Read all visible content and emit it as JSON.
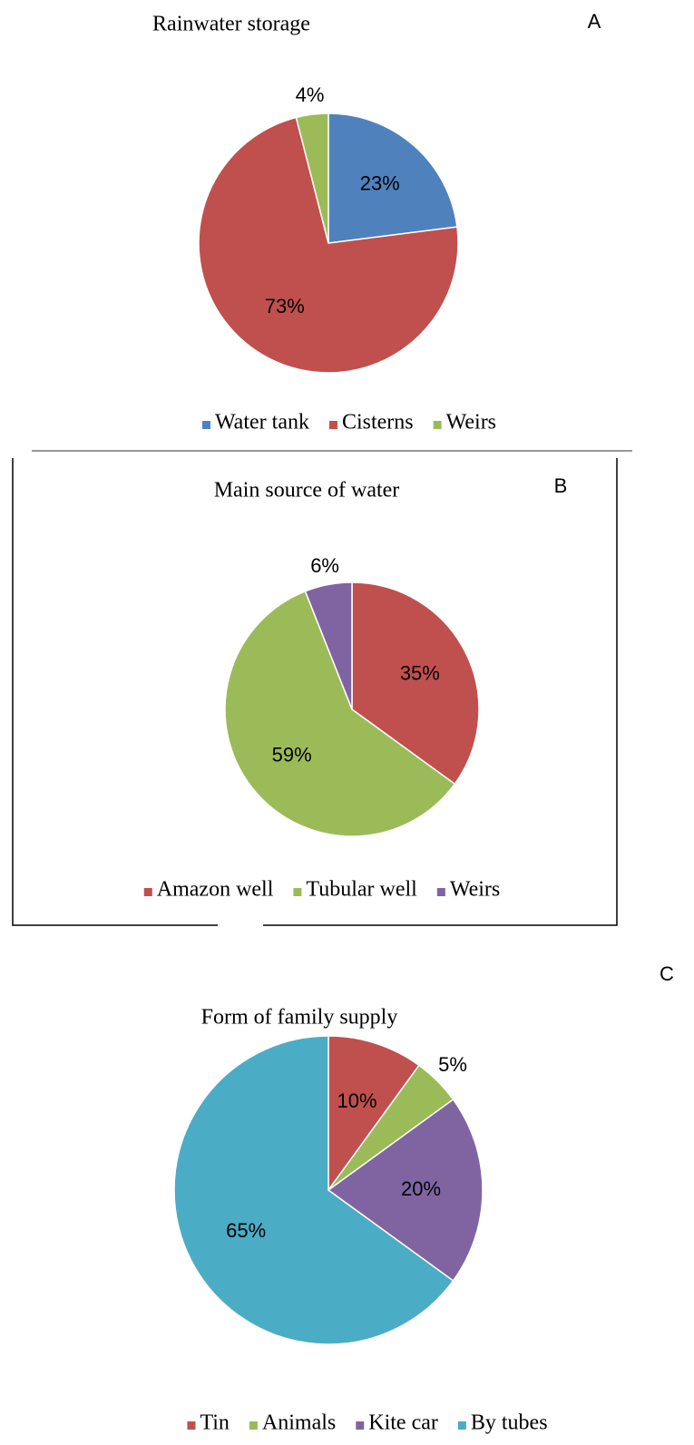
{
  "chart_data": [
    {
      "type": "pie",
      "title": "Rainwater storage",
      "panel_label": "A",
      "categories": [
        "Water tank",
        "Cisterns",
        "Weirs"
      ],
      "values": [
        23,
        73,
        4
      ],
      "value_labels": [
        "23%",
        "73%",
        "4%"
      ],
      "colors": [
        "#4f81bd",
        "#c0504d",
        "#9bbb59"
      ]
    },
    {
      "type": "pie",
      "title": "Main source of water",
      "panel_label": "B",
      "categories": [
        "Amazon well",
        "Tubular well",
        "Weirs"
      ],
      "values": [
        35,
        59,
        6
      ],
      "value_labels": [
        "35%",
        "59%",
        "6%"
      ],
      "colors": [
        "#c0504d",
        "#9bbb59",
        "#8064a2"
      ]
    },
    {
      "type": "pie",
      "title": "Form of family supply",
      "panel_label": "C",
      "categories": [
        "Tin",
        "Animals",
        "Kite car",
        "By tubes"
      ],
      "values": [
        10,
        5,
        20,
        65
      ],
      "value_labels": [
        "10%",
        "5%",
        "20%",
        "65%"
      ],
      "colors": [
        "#c0504d",
        "#9bbb59",
        "#8064a2",
        "#4bacc6"
      ]
    }
  ]
}
